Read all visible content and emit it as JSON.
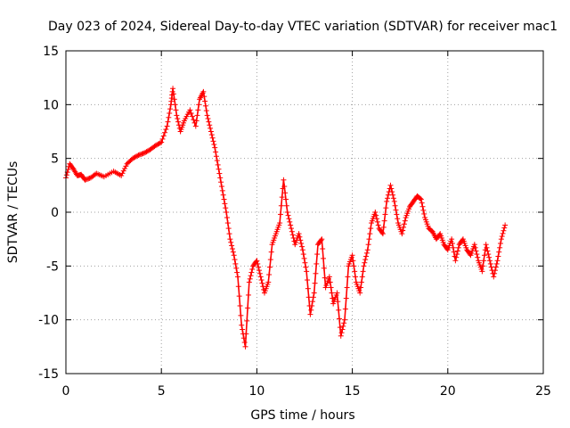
{
  "chart_data": {
    "type": "scatter",
    "title": "Day 023 of 2024, Sidereal Day-to-day VTEC variation (SDTVAR) for receiver mac1",
    "xlabel": "GPS time / hours",
    "ylabel": "SDTVAR / TECUs",
    "xlim": [
      0,
      25
    ],
    "ylim": [
      -15,
      15
    ],
    "xticks": [
      0,
      5,
      10,
      15,
      20,
      25
    ],
    "yticks": [
      -15,
      -10,
      -5,
      0,
      5,
      10,
      15
    ],
    "xtick_labels": [
      "0",
      "5",
      "10",
      "15",
      "20",
      "25"
    ],
    "ytick_labels": [
      "-15",
      "-10",
      "-5",
      "0",
      "5",
      "10",
      "15"
    ],
    "grid": true,
    "legend": null,
    "series": [
      {
        "name": "SDTVAR",
        "color": "#ff0000",
        "marker": "plus",
        "x": [
          0.0,
          0.2,
          0.4,
          0.6,
          0.8,
          1.0,
          1.3,
          1.6,
          2.0,
          2.5,
          2.9,
          3.2,
          3.5,
          3.8,
          4.1,
          4.4,
          4.7,
          5.0,
          5.3,
          5.5,
          5.6,
          5.8,
          6.0,
          6.2,
          6.5,
          6.8,
          7.0,
          7.2,
          7.4,
          7.6,
          7.8,
          8.0,
          8.2,
          8.4,
          8.6,
          8.8,
          9.0,
          9.2,
          9.4,
          9.6,
          9.8,
          10.0,
          10.2,
          10.4,
          10.6,
          10.8,
          11.0,
          11.2,
          11.4,
          11.6,
          11.8,
          12.0,
          12.2,
          12.4,
          12.6,
          12.8,
          13.0,
          13.2,
          13.4,
          13.6,
          13.8,
          14.0,
          14.2,
          14.4,
          14.6,
          14.8,
          15.0,
          15.2,
          15.4,
          15.6,
          15.8,
          16.0,
          16.2,
          16.4,
          16.6,
          16.8,
          17.0,
          17.2,
          17.4,
          17.6,
          17.8,
          18.0,
          18.2,
          18.4,
          18.6,
          18.8,
          19.0,
          19.2,
          19.4,
          19.6,
          19.8,
          20.0,
          20.2,
          20.4,
          20.6,
          20.8,
          21.0,
          21.2,
          21.4,
          21.6,
          21.8,
          22.0,
          22.2,
          22.4,
          22.6,
          22.8,
          23.0
        ],
        "y": [
          3.2,
          4.5,
          4.0,
          3.4,
          3.5,
          3.0,
          3.2,
          3.6,
          3.3,
          3.8,
          3.4,
          4.5,
          5.0,
          5.3,
          5.5,
          5.8,
          6.2,
          6.5,
          8.0,
          10.0,
          11.5,
          9.0,
          7.5,
          8.5,
          9.5,
          8.0,
          10.5,
          11.2,
          9.0,
          7.5,
          6.0,
          4.0,
          2.0,
          0.0,
          -2.5,
          -4.0,
          -6.0,
          -10.5,
          -12.5,
          -6.5,
          -5.0,
          -4.5,
          -6.0,
          -7.5,
          -6.5,
          -3.0,
          -2.0,
          -1.0,
          3.0,
          0.0,
          -1.5,
          -3.0,
          -2.0,
          -3.5,
          -5.5,
          -9.5,
          -7.5,
          -3.0,
          -2.5,
          -7.0,
          -6.0,
          -8.5,
          -7.5,
          -11.5,
          -10.0,
          -5.0,
          -4.0,
          -6.5,
          -7.5,
          -5.0,
          -3.5,
          -1.0,
          0.0,
          -1.5,
          -2.0,
          1.0,
          2.5,
          1.0,
          -1.0,
          -2.0,
          -0.5,
          0.5,
          1.0,
          1.5,
          1.2,
          -0.5,
          -1.5,
          -1.8,
          -2.5,
          -2.0,
          -3.0,
          -3.5,
          -2.5,
          -4.5,
          -3.0,
          -2.5,
          -3.5,
          -4.0,
          -3.0,
          -4.5,
          -5.5,
          -3.0,
          -4.5,
          -6.0,
          -4.5,
          -2.5,
          -1.2
        ]
      }
    ]
  }
}
